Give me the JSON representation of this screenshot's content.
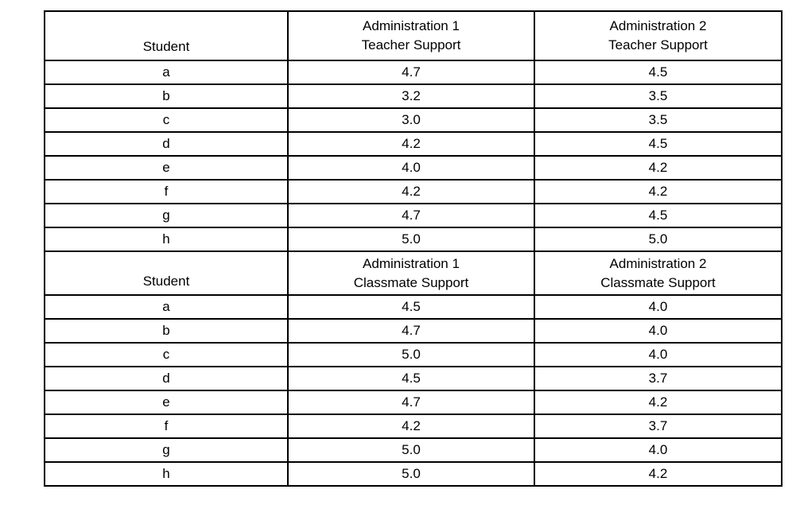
{
  "page": {
    "background_color": "#ffffff",
    "text_color": "#000000",
    "border_color": "#000000"
  },
  "table": {
    "sections": [
      {
        "headers": {
          "student": "Student",
          "col2_line1": "Administration 1",
          "col2_line2": "Teacher Support",
          "col3_line1": "Administration 2",
          "col3_line2": "Teacher Support"
        },
        "rows": [
          {
            "student": "a",
            "admin1": "4.7",
            "admin2": "4.5"
          },
          {
            "student": "b",
            "admin1": "3.2",
            "admin2": "3.5"
          },
          {
            "student": "c",
            "admin1": "3.0",
            "admin2": "3.5"
          },
          {
            "student": "d",
            "admin1": "4.2",
            "admin2": "4.5"
          },
          {
            "student": "e",
            "admin1": "4.0",
            "admin2": "4.2"
          },
          {
            "student": "f",
            "admin1": "4.2",
            "admin2": "4.2"
          },
          {
            "student": "g",
            "admin1": "4.7",
            "admin2": "4.5"
          },
          {
            "student": "h",
            "admin1": "5.0",
            "admin2": "5.0"
          }
        ]
      },
      {
        "headers": {
          "student": "Student",
          "col2_line1": "Administration 1",
          "col2_line2": "Classmate Support",
          "col3_line1": "Administration 2",
          "col3_line2": "Classmate Support"
        },
        "rows": [
          {
            "student": "a",
            "admin1": "4.5",
            "admin2": "4.0"
          },
          {
            "student": "b",
            "admin1": "4.7",
            "admin2": "4.0"
          },
          {
            "student": "c",
            "admin1": "5.0",
            "admin2": "4.0"
          },
          {
            "student": "d",
            "admin1": "4.5",
            "admin2": "3.7"
          },
          {
            "student": "e",
            "admin1": "4.7",
            "admin2": "4.2"
          },
          {
            "student": "f",
            "admin1": "4.2",
            "admin2": "3.7"
          },
          {
            "student": "g",
            "admin1": "5.0",
            "admin2": "4.0"
          },
          {
            "student": "h",
            "admin1": "5.0",
            "admin2": "4.2"
          }
        ]
      }
    ]
  }
}
